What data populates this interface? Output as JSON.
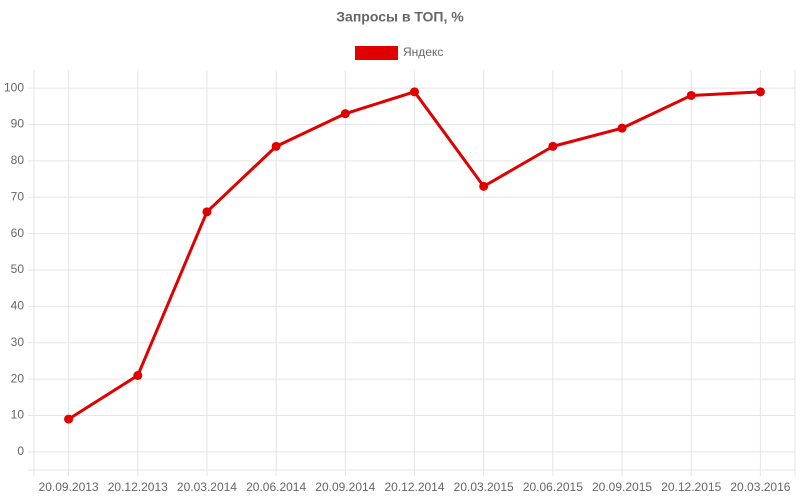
{
  "chart_data": {
    "type": "line",
    "title": "Запросы в ТОП, %",
    "categories": [
      "20.09.2013",
      "20.12.2013",
      "20.03.2014",
      "20.06.2014",
      "20.09.2014",
      "20.12.2014",
      "20.03.2015",
      "20.06.2015",
      "20.09.2015",
      "20.12.2015",
      "20.03.2016"
    ],
    "series": [
      {
        "name": "Яндекс",
        "color": "#e00000",
        "values": [
          9,
          21,
          66,
          84,
          93,
          99,
          73,
          84,
          89,
          98,
          99
        ]
      }
    ],
    "ylim": [
      -5,
      105
    ],
    "yticks": [
      0,
      10,
      20,
      30,
      40,
      50,
      60,
      70,
      80,
      90,
      100
    ],
    "grid": true,
    "legend": "top"
  }
}
